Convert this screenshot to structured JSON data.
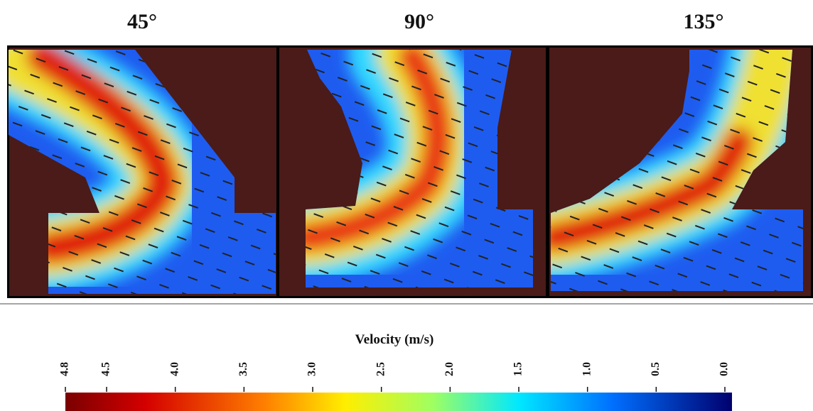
{
  "titles": [
    "45°",
    "90°",
    "135°"
  ],
  "colorbar": {
    "label": "Velocity (m/s)",
    "lim": [
      4.8,
      0
    ],
    "ticks": [
      4.8,
      4.5,
      {
        "value": 4,
        "label": "4.0"
      },
      3.5,
      {
        "value": 3,
        "label": "3.0"
      },
      2.5,
      {
        "value": 2,
        "label": "2.0"
      },
      1.5,
      {
        "value": 1,
        "label": "1.0"
      },
      0.5,
      {
        "value": 0,
        "label": "0.0"
      }
    ]
  }
}
